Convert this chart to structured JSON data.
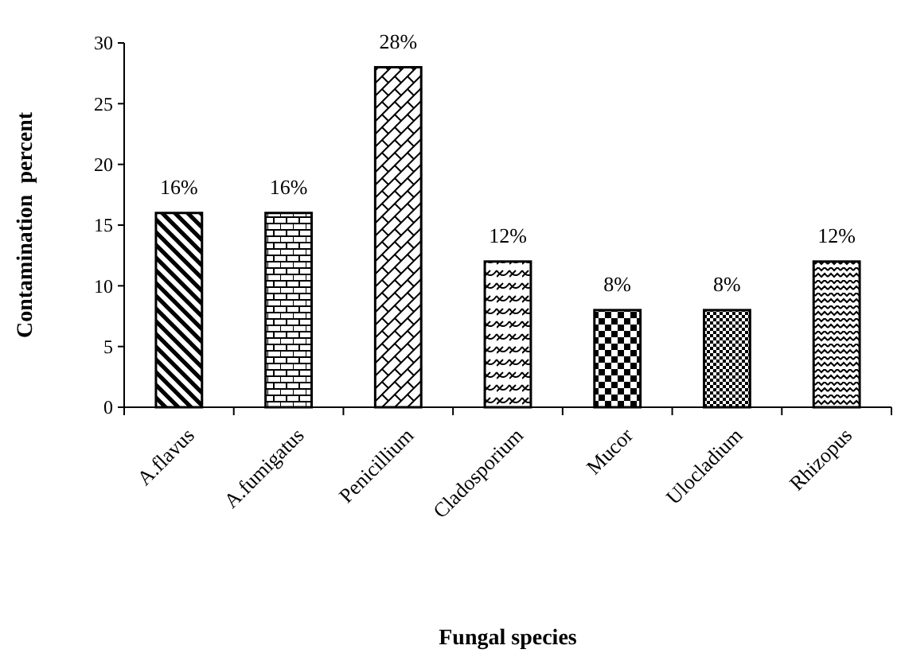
{
  "chart_data": {
    "type": "bar",
    "xlabel": "Fungal species",
    "ylabel": "Contamination  percent",
    "categories": [
      "A.flavus",
      "A.fumigatus",
      "Penicillium",
      "Cladosporium",
      "Mucor",
      "Ulocladium",
      "Rhizopus"
    ],
    "values": [
      16,
      16,
      28,
      12,
      8,
      8,
      12
    ],
    "value_labels": [
      "16%",
      "16%",
      "28%",
      "12%",
      "8%",
      "8%",
      "12%"
    ],
    "color": "#000000",
    "ylim": [
      0,
      30
    ],
    "yticks": [
      0,
      5,
      10,
      15,
      20,
      25,
      30
    ]
  }
}
